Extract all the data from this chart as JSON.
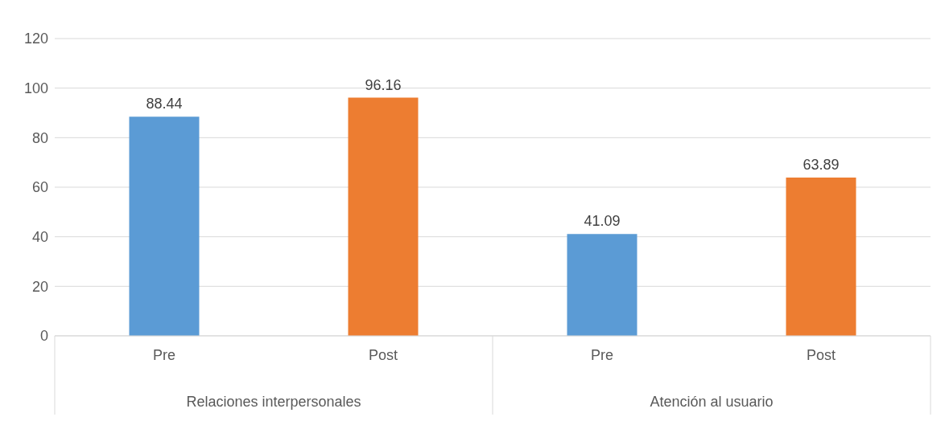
{
  "chart_data": {
    "type": "bar",
    "categories": [
      "Pre",
      "Post",
      "Pre",
      "Post"
    ],
    "values": [
      88.44,
      96.16,
      41.09,
      63.89
    ],
    "colors": [
      "#5b9bd5",
      "#ed7d31",
      "#5b9bd5",
      "#ed7d31"
    ],
    "ylim": [
      0,
      120
    ],
    "yticks": [
      0,
      20,
      40,
      60,
      80,
      100,
      120
    ],
    "grid": "y",
    "data_labels": true,
    "annotations": [
      "Relaciones interpersonales",
      "Atención al usuario"
    ]
  }
}
